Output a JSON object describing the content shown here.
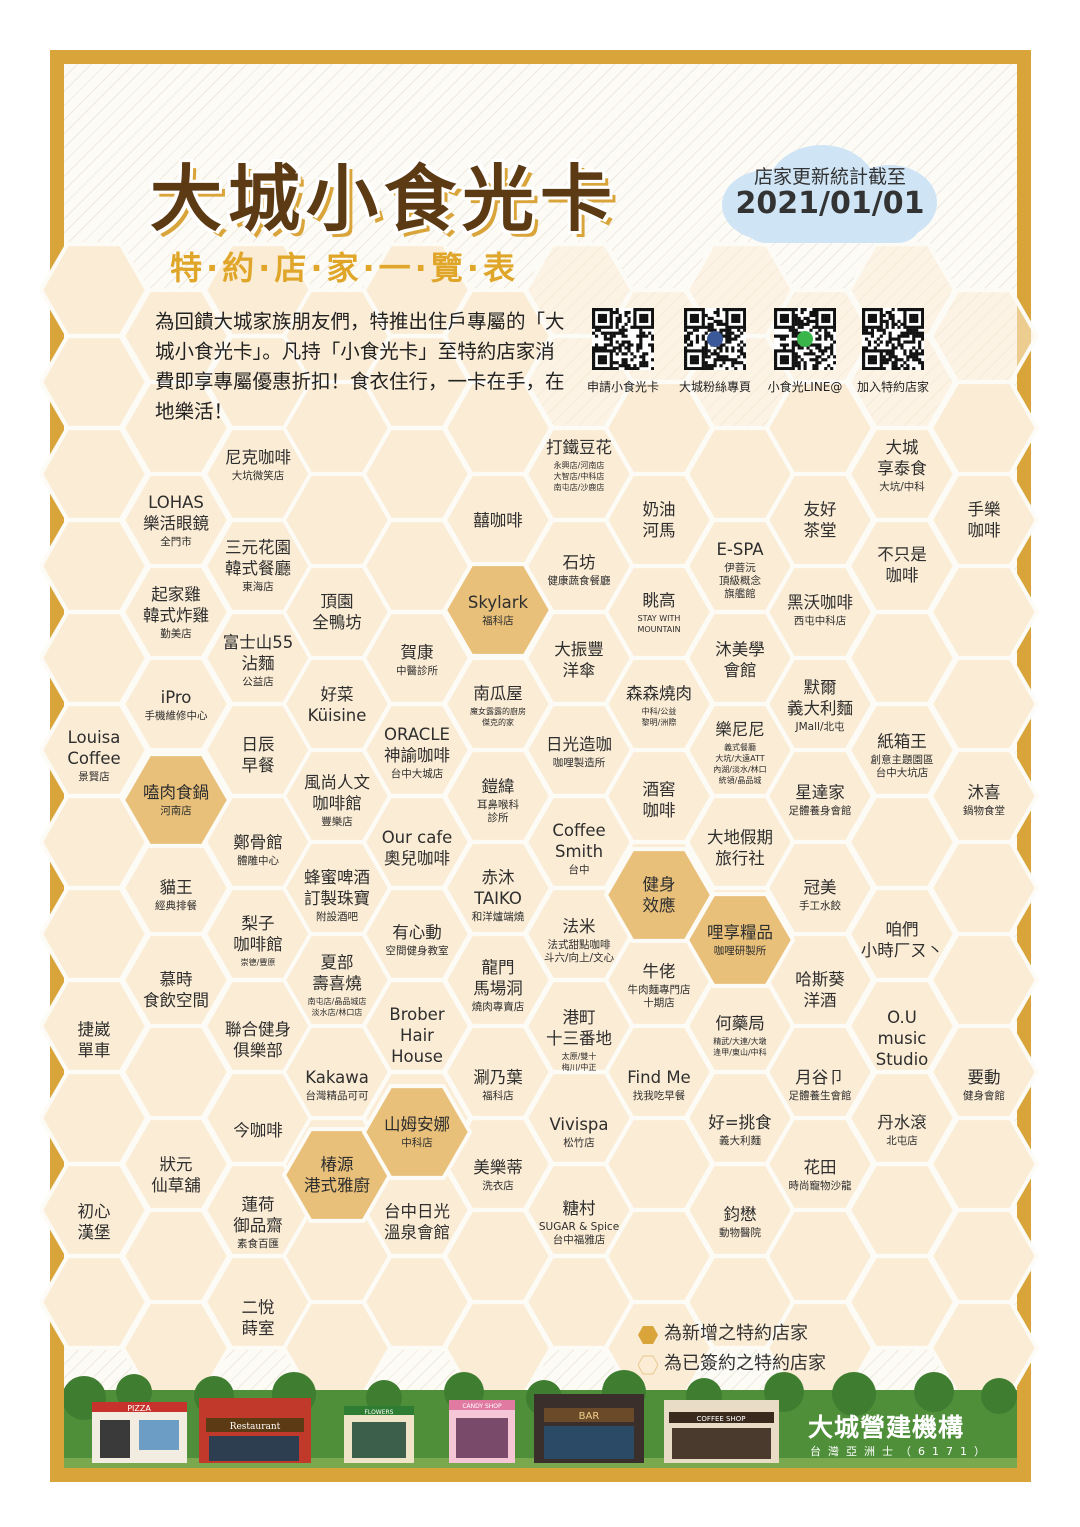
{
  "title": "大城小食光卡",
  "subtitle": "特·約·店·家·一·覽·表",
  "update_notice": {
    "label": "店家更新統計截至",
    "date": "2021/01/01"
  },
  "intro": "為回饋大城家族朋友們，特推出住戶專屬的「大城小食光卡」。凡持「小食光卡」至特約店家消費即享專屬優惠折扣！食衣住行，一卡在手，在地樂活！",
  "qr_codes": [
    {
      "label": "申請小食光卡",
      "icon": "qr-code"
    },
    {
      "label": "大城粉絲專頁",
      "icon": "qr-code-facebook"
    },
    {
      "label": "小食光LINE@",
      "icon": "qr-code-line"
    },
    {
      "label": "加入特約店家",
      "icon": "qr-code"
    }
  ],
  "colors": {
    "frame": "#d9a43a",
    "new_shop_hex": "#e8c07a",
    "signed_shop_hex": "#fbecd5",
    "title": "#5b3a14",
    "subtitle": "#e0a62a"
  },
  "shops": [
    {
      "name": "尼克咖啡",
      "sub": "大坑微笑店"
    },
    {
      "name": "LOHAS\n樂活眼鏡",
      "sub": "全門市"
    },
    {
      "name": "三元花園\n韓式餐廳",
      "sub": "東海店"
    },
    {
      "name": "起家雞\n韓式炸雞",
      "sub": "勤美店"
    },
    {
      "name": "富士山55\n沾麵",
      "sub": "公益店"
    },
    {
      "name": "頂園\n全鴨坊",
      "sub": ""
    },
    {
      "name": "iPro",
      "sub": "手機維修中心"
    },
    {
      "name": "好菜\nKüisine",
      "sub": ""
    },
    {
      "name": "Louisa\nCoffee",
      "sub": "景賢店"
    },
    {
      "name": "日辰\n早餐",
      "sub": ""
    },
    {
      "name": "嗑肉食鍋",
      "sub": "河南店",
      "new": true
    },
    {
      "name": "風尚人文\n咖啡館",
      "sub": "豐樂店"
    },
    {
      "name": "鄭骨館",
      "sub": "體雕中心"
    },
    {
      "name": "貓王",
      "sub": "經典排餐"
    },
    {
      "name": "蜂蜜啤酒\n訂製珠寶",
      "sub": "附設酒吧"
    },
    {
      "name": "梨子\n咖啡館",
      "sub": "崇德/豐原",
      "xs": true
    },
    {
      "name": "慕時\n食飲空間",
      "sub": ""
    },
    {
      "name": "夏部\n壽喜燒",
      "sub": "南屯店/晶品城店\n淡水店/林口店",
      "xs": true
    },
    {
      "name": "聯合健身\n俱樂部",
      "sub": ""
    },
    {
      "name": "捷崴\n單車",
      "sub": ""
    },
    {
      "name": "Kakawa",
      "sub": "台灣精品可可"
    },
    {
      "name": "今咖啡",
      "sub": ""
    },
    {
      "name": "狀元\n仙草舖",
      "sub": ""
    },
    {
      "name": "椿源\n港式雅廚",
      "sub": "",
      "new": true
    },
    {
      "name": "初心\n漢堡",
      "sub": ""
    },
    {
      "name": "蓮荷\n御品齋",
      "sub": "素食百匯"
    },
    {
      "name": "二悅\n蒔室",
      "sub": ""
    },
    {
      "name": "賀康",
      "sub": "中醫診所"
    },
    {
      "name": "ORACLE\n神諭咖啡",
      "sub": "台中大城店"
    },
    {
      "name": "Our cafe\n奧兒咖啡",
      "sub": ""
    },
    {
      "name": "有心動",
      "sub": "空間健身教室"
    },
    {
      "name": "Brober\nHair\nHouse",
      "sub": ""
    },
    {
      "name": "山姆安娜",
      "sub": "中科店",
      "new": true
    },
    {
      "name": "台中日光\n溫泉會館",
      "sub": ""
    },
    {
      "name": "打鐵豆花",
      "sub": "永興店/河南店\n大智店/中科店\n南屯店/沙鹿店",
      "xs": true
    },
    {
      "name": "囍咖啡",
      "sub": ""
    },
    {
      "name": "Skylark",
      "sub": "福科店",
      "new": true
    },
    {
      "name": "南瓜屋",
      "sub": "魔女露露的廚房\n傑克的家",
      "xs": true
    },
    {
      "name": "鎧緯",
      "sub": "耳鼻喉科\n診所"
    },
    {
      "name": "赤沐\nTAIKO",
      "sub": "和洋爐端燒"
    },
    {
      "name": "龍門\n馬場洞",
      "sub": "燒肉專賣店"
    },
    {
      "name": "涮乃葉",
      "sub": "福科店"
    },
    {
      "name": "美樂蒂",
      "sub": "洗衣店"
    },
    {
      "name": "石坊",
      "sub": "健康蔬食餐廳"
    },
    {
      "name": "大振豐\n洋傘",
      "sub": ""
    },
    {
      "name": "日光造咖",
      "sub": "咖哩製造所"
    },
    {
      "name": "Coffee\nSmith",
      "sub": "台中"
    },
    {
      "name": "法米",
      "sub": "法式甜點咖啡\n斗六/向上/文心",
      "xs": false
    },
    {
      "name": "港町\n十三番地",
      "sub": "太原/雙十\n梅川/中正",
      "xs": true
    },
    {
      "name": "Vivispa",
      "sub": "松竹店"
    },
    {
      "name": "糖村",
      "sub": "SUGAR & Spice\n台中福雅店"
    },
    {
      "name": "奶油\n河馬",
      "sub": ""
    },
    {
      "name": "眺高",
      "sub": "STAY WITH\nMOUNTAIN",
      "xs": true
    },
    {
      "name": "森森燒肉",
      "sub": "中科/公益\n黎明/洲際",
      "xs": true
    },
    {
      "name": "酒窖\n咖啡",
      "sub": ""
    },
    {
      "name": "健身\n效應",
      "sub": "",
      "new": true
    },
    {
      "name": "牛佬",
      "sub": "牛肉麵專門店\n十期店"
    },
    {
      "name": "Find Me",
      "sub": "找我吃早餐"
    },
    {
      "name": "E-SPA",
      "sub": "伊菩沅\n頂級概念\n旗艦館"
    },
    {
      "name": "沐美學\n會館",
      "sub": ""
    },
    {
      "name": "樂尼尼",
      "sub": "義式餐廳\n大坑/大遠ATT\n內湖/淡水/林口\n統領/晶品城",
      "xs": true
    },
    {
      "name": "大地假期\n旅行社",
      "sub": ""
    },
    {
      "name": "哩享糧品",
      "sub": "咖哩研製所",
      "new": true
    },
    {
      "name": "何藥局",
      "sub": "精武/大連/大墩\n逢甲/東山/中科",
      "xs": true
    },
    {
      "name": "好=挑食",
      "sub": "義大利麵"
    },
    {
      "name": "鈞懋",
      "sub": "動物醫院"
    },
    {
      "name": "友好\n茶堂",
      "sub": ""
    },
    {
      "name": "黑沃咖啡",
      "sub": "西屯中科店"
    },
    {
      "name": "默爾\n義大利麵",
      "sub": "JMall/北屯"
    },
    {
      "name": "星達家",
      "sub": "足體養身會館"
    },
    {
      "name": "冠美",
      "sub": "手工水餃"
    },
    {
      "name": "哈斯葵\n洋酒",
      "sub": ""
    },
    {
      "name": "月谷卩",
      "sub": "足體養生會館"
    },
    {
      "name": "花田",
      "sub": "時尚寵物沙龍"
    },
    {
      "name": "大城\n享泰食",
      "sub": "大坑/中科"
    },
    {
      "name": "不只是\n咖啡",
      "sub": ""
    },
    {
      "name": "紙箱王",
      "sub": "創意主題園區\n台中大坑店"
    },
    {
      "name": "咱們\n小時厂ㄡ丶",
      "sub": ""
    },
    {
      "name": "O.U\nmusic\nStudio",
      "sub": ""
    },
    {
      "name": "丹水滾",
      "sub": "北屯店"
    },
    {
      "name": "手樂\n咖啡",
      "sub": ""
    },
    {
      "name": "沐喜",
      "sub": "鍋物食堂"
    },
    {
      "name": "要動",
      "sub": "健身會館"
    }
  ],
  "legend": [
    {
      "label": "為新增之特約店家",
      "type": "new"
    },
    {
      "label": "為已簽約之特約店家",
      "type": "signed"
    }
  ],
  "storefront_signs": [
    "PIZZA",
    "Restaurant",
    "FLOWERS",
    "CANDY SHOP",
    "BAR",
    "COFFEE SHOP"
  ],
  "brand": {
    "name": "大城營建機構",
    "sub": "台灣亞洲士（6171）"
  }
}
